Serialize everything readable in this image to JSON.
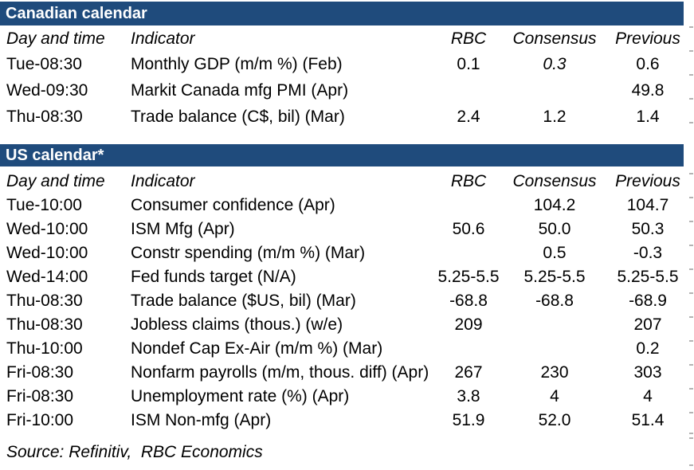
{
  "accent_color": "#1F4B7C",
  "sections": [
    {
      "title": "Canadian calendar",
      "columns": [
        "Day and time",
        "Indicator",
        "RBC",
        "Consensus",
        "Previous"
      ],
      "rows": [
        {
          "day": "Tue-08:30",
          "indicator": "Monthly GDP (m/m %) (Feb)",
          "rbc": "0.1",
          "consensus": "0.3",
          "consensus_italic": true,
          "previous": "0.6"
        },
        {
          "day": "Wed-09:30",
          "indicator": "Markit Canada mfg PMI (Apr)",
          "rbc": "",
          "consensus": "",
          "previous": "49.8"
        },
        {
          "day": "Thu-08:30",
          "indicator": "Trade balance (C$, bil) (Mar)",
          "rbc": "2.4",
          "consensus": "1.2",
          "previous": "1.4"
        }
      ]
    },
    {
      "title": "US calendar*",
      "columns": [
        "Day and time",
        "Indicator",
        "RBC",
        "Consensus",
        "Previous"
      ],
      "rows": [
        {
          "day": "Tue-10:00",
          "indicator": "Consumer confidence (Apr)",
          "rbc": "",
          "consensus": "104.2",
          "previous": "104.7"
        },
        {
          "day": "Wed-10:00",
          "indicator": "ISM Mfg (Apr)",
          "rbc": "50.6",
          "consensus": "50.0",
          "previous": "50.3"
        },
        {
          "day": "Wed-10:00",
          "indicator": "Constr spending (m/m %) (Mar)",
          "rbc": "",
          "consensus": "0.5",
          "previous": "-0.3"
        },
        {
          "day": "Wed-14:00",
          "indicator": "Fed funds target (N/A)",
          "rbc": "5.25-5.5",
          "consensus": "5.25-5.5",
          "previous": "5.25-5.5"
        },
        {
          "day": "Thu-08:30",
          "indicator": "Trade balance ($US, bil) (Mar)",
          "rbc": "-68.8",
          "consensus": "-68.8",
          "previous": "-68.9"
        },
        {
          "day": "Thu-08:30",
          "indicator": "Jobless claims (thous.) (w/e)",
          "rbc": "209",
          "consensus": "",
          "previous": "207"
        },
        {
          "day": "Thu-10:00",
          "indicator": "Nondef Cap Ex-Air (m/m %) (Mar)",
          "rbc": "",
          "consensus": "",
          "previous": "0.2"
        },
        {
          "day": "Fri-08:30",
          "indicator": "Nonfarm payrolls (m/m, thous. diff) (Apr)",
          "rbc": "267",
          "consensus": "230",
          "previous": "303"
        },
        {
          "day": "Fri-08:30",
          "indicator": "Unemployment rate (%) (Apr)",
          "rbc": "3.8",
          "consensus": "4",
          "previous": "4"
        },
        {
          "day": "Fri-10:00",
          "indicator": "ISM Non-mfg (Apr)",
          "rbc": "51.9",
          "consensus": "52.0",
          "previous": "51.4"
        }
      ]
    }
  ],
  "source_note": "Source: Refinitiv,  RBC Economics"
}
